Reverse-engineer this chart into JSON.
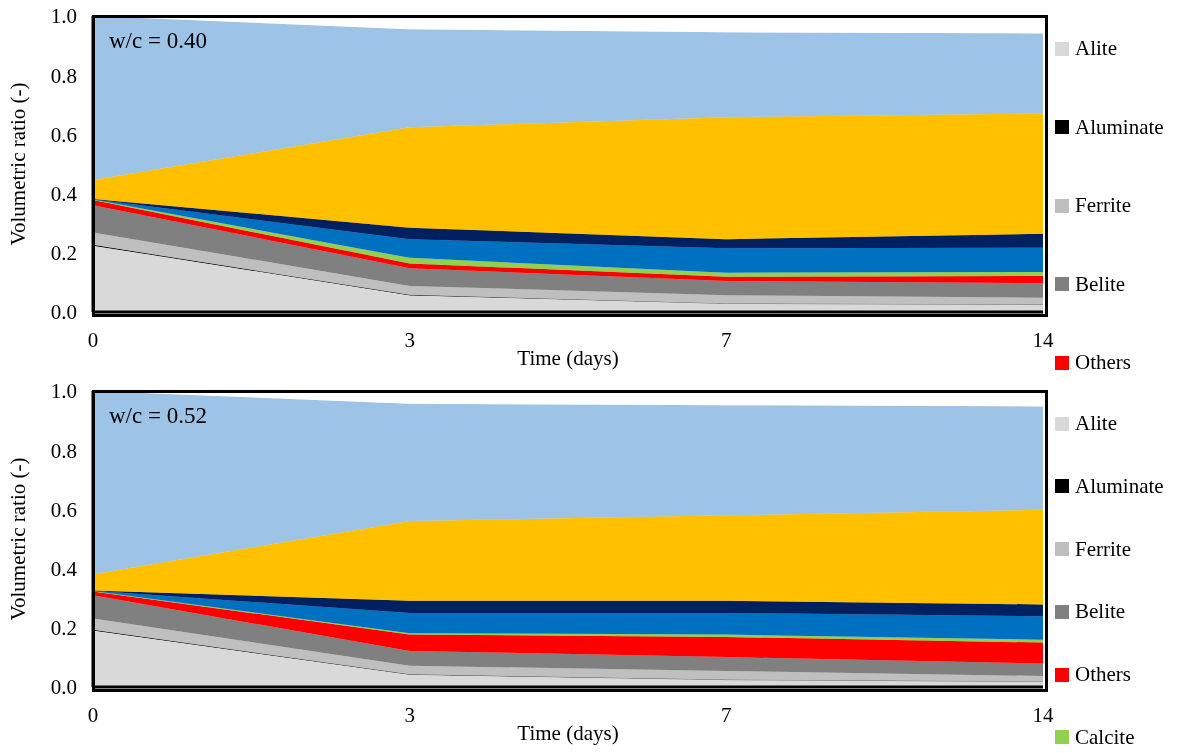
{
  "chart_data": [
    {
      "type": "area",
      "stacked": true,
      "xlabel": "Time (days)",
      "ylabel": "Volumetric ratio (-)",
      "annotations": [
        "w/c = 0.40"
      ],
      "categories": [
        "0",
        "3",
        "7",
        "14"
      ],
      "ylim": [
        0,
        1
      ],
      "yticks": [
        {
          "value": 0,
          "label": "0.0"
        },
        {
          "value": 0.2,
          "label": "0.2"
        },
        {
          "value": 0.4,
          "label": "0.4"
        },
        {
          "value": 0.6,
          "label": "0.6"
        },
        {
          "value": 0.8,
          "label": "0.8"
        },
        {
          "value": 1,
          "label": "1.0"
        }
      ],
      "legend": "right",
      "series": [
        {
          "name": "Alite",
          "color": "#d9d9d9",
          "values": [
            0.224,
            0.057,
            0.029,
            0.026
          ]
        },
        {
          "name": "Aluminate",
          "color": "#000000",
          "values": [
            0.003,
            0.001,
            0,
            0
          ]
        },
        {
          "name": "Ferrite",
          "color": "#bfbfbf",
          "values": [
            0.042,
            0.03,
            0.028,
            0.022
          ]
        },
        {
          "name": "Belite",
          "color": "#808080",
          "values": [
            0.092,
            0.06,
            0.048,
            0.049
          ]
        },
        {
          "name": "Others",
          "color": "#ff0000",
          "values": [
            0.017,
            0.016,
            0.014,
            0.025
          ]
        },
        {
          "color": "#92d050",
          "values": [
            0.002,
            0.019,
            0.014,
            0.013
          ]
        },
        {
          "color": "#0070c0",
          "values": [
            0.001,
            0.063,
            0.082,
            0.082
          ]
        },
        {
          "color": "#002060",
          "values": [
            0.001,
            0.039,
            0.031,
            0.047
          ]
        },
        {
          "color": "#ffc000",
          "values": [
            0.064,
            0.339,
            0.412,
            0.407
          ]
        },
        {
          "color": "#9dc3e6",
          "values": [
            0.554,
            0.331,
            0.287,
            0.27
          ]
        },
        {
          "color": "#ffffff",
          "values": [
            0,
            0.045,
            0.055,
            0.059
          ]
        }
      ]
    },
    {
      "type": "area",
      "stacked": true,
      "xlabel": "Time (days)",
      "ylabel": "Volumetric ratio (-)",
      "annotations": [
        "w/c = 0.52"
      ],
      "categories": [
        "0",
        "3",
        "7",
        "14"
      ],
      "ylim": [
        0,
        1
      ],
      "yticks": [
        {
          "value": 0,
          "label": "0.0"
        },
        {
          "value": 0.2,
          "label": "0.2"
        },
        {
          "value": 0.4,
          "label": "0.4"
        },
        {
          "value": 0.6,
          "label": "0.6"
        },
        {
          "value": 0.8,
          "label": "0.8"
        },
        {
          "value": 1,
          "label": "1.0"
        }
      ],
      "legend": "right",
      "series": [
        {
          "name": "Alite",
          "color": "#d9d9d9",
          "values": [
            0.191,
            0.042,
            0.025,
            0.019
          ]
        },
        {
          "name": "Aluminate",
          "color": "#000000",
          "values": [
            0.002,
            0.001,
            0,
            0
          ]
        },
        {
          "name": "Ferrite",
          "color": "#bfbfbf",
          "values": [
            0.038,
            0.029,
            0.029,
            0.018
          ]
        },
        {
          "name": "Belite",
          "color": "#808080",
          "values": [
            0.079,
            0.05,
            0.047,
            0.042
          ]
        },
        {
          "name": "Others",
          "color": "#ff0000",
          "values": [
            0.013,
            0.055,
            0.068,
            0.071
          ]
        },
        {
          "name": "Calcite",
          "color": "#92d050",
          "values": [
            0.001,
            0.005,
            0.008,
            0.01
          ]
        },
        {
          "color": "#0070c0",
          "values": [
            0.001,
            0.068,
            0.073,
            0.079
          ]
        },
        {
          "color": "#002060",
          "values": [
            0.001,
            0.041,
            0.041,
            0.04
          ]
        },
        {
          "color": "#ffc000",
          "values": [
            0.055,
            0.27,
            0.289,
            0.32
          ]
        },
        {
          "color": "#9dc3e6",
          "values": [
            0.619,
            0.396,
            0.372,
            0.349
          ]
        },
        {
          "color": "#ffffff",
          "values": [
            0,
            0.043,
            0.048,
            0.052
          ]
        }
      ]
    }
  ]
}
